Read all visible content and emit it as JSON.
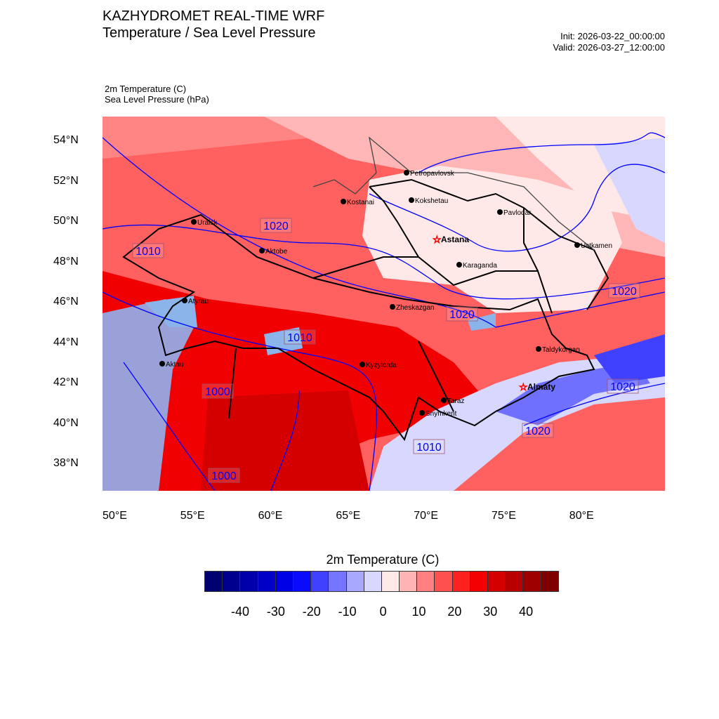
{
  "header": {
    "title": "KAZHYDROMET REAL-TIME WRF",
    "subtitle": "Temperature / Sea Level Pressure",
    "init": "Init: 2026-03-22_00:00:00",
    "valid": "Valid: 2026-03-27_12:00:00"
  },
  "fields": {
    "temp": "2m Temperature   (C)",
    "slp": "Sea Level Pressure   (hPa)"
  },
  "lat_ticks": [
    "54°N",
    "52°N",
    "50°N",
    "48°N",
    "46°N",
    "44°N",
    "42°N",
    "40°N",
    "38°N"
  ],
  "lon_ticks": [
    "50°E",
    "55°E",
    "60°E",
    "65°E",
    "70°E",
    "75°E",
    "80°E"
  ],
  "cities": [
    {
      "name": "Petropavlovsk"
    },
    {
      "name": "Kostanai"
    },
    {
      "name": "Kokshetau"
    },
    {
      "name": "Pavlodar"
    },
    {
      "name": "Uralsk"
    },
    {
      "name": "Aktobe"
    },
    {
      "name": "Astana",
      "capital": true
    },
    {
      "name": "Ustkamen"
    },
    {
      "name": "Karaganda"
    },
    {
      "name": "Atyrau"
    },
    {
      "name": "Zheskazgan"
    },
    {
      "name": "Taldykorgan"
    },
    {
      "name": "Aktau"
    },
    {
      "name": "Kyzylorda"
    },
    {
      "name": "Almaty",
      "capital": true
    },
    {
      "name": "Taraz"
    },
    {
      "name": "Shymkent"
    }
  ],
  "isobar_labels": [
    "1020",
    "1010",
    "1020",
    "1020",
    "1010",
    "1000",
    "1020",
    "1020",
    "1010",
    "1000"
  ],
  "colorbar": {
    "title": "2m Temperature  (C)",
    "colors": [
      "#000070",
      "#00008f",
      "#0000aa",
      "#0000c8",
      "#0000e6",
      "#0a0aff",
      "#4040ff",
      "#7575ff",
      "#a8a8ff",
      "#d8d8ff",
      "#ffe8e8",
      "#ffb4b4",
      "#ff8080",
      "#ff5050",
      "#ff2020",
      "#f50000",
      "#d40000",
      "#b80000",
      "#9e0000",
      "#800000"
    ],
    "labels": [
      "-40",
      "-30",
      "-20",
      "-10",
      "0",
      "10",
      "20",
      "30",
      "40"
    ]
  }
}
